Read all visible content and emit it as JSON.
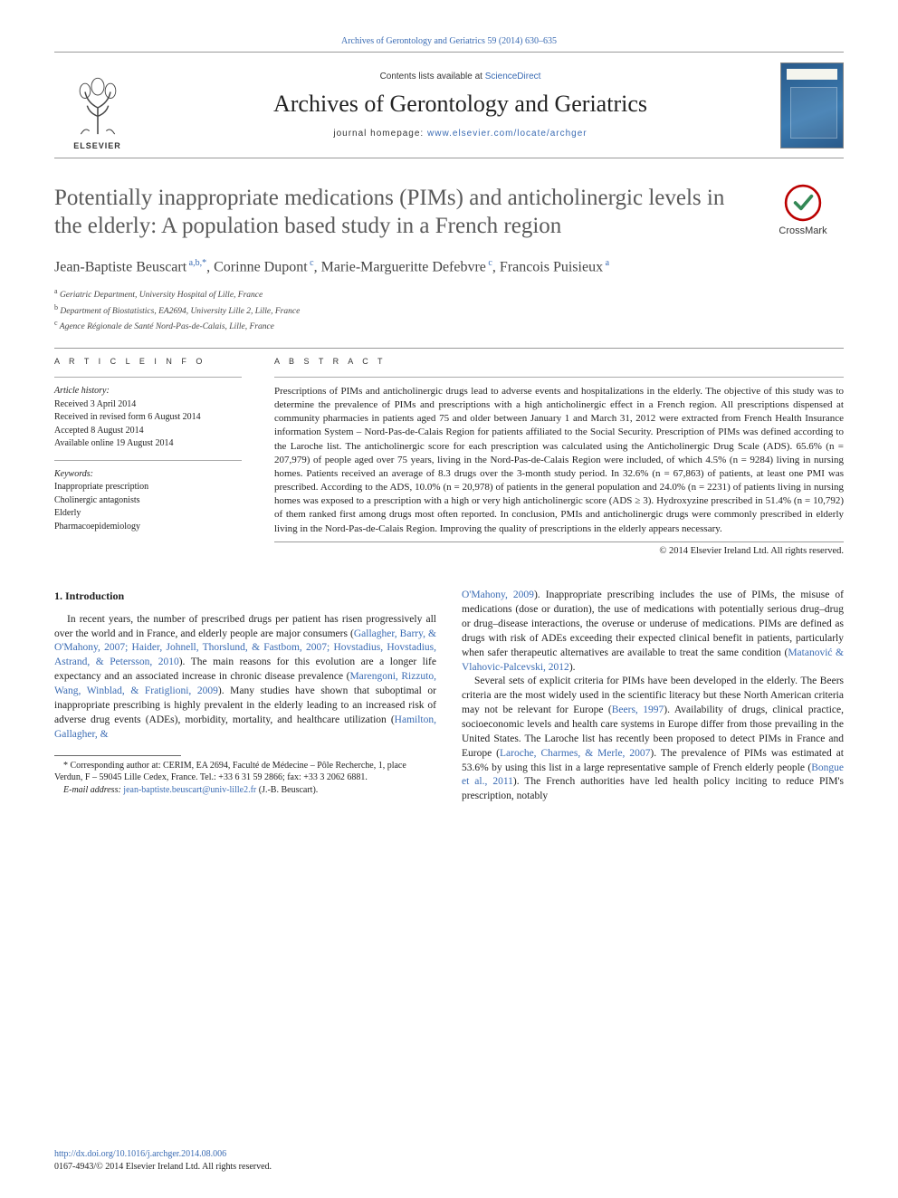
{
  "top_citation": "Archives of Gerontology and Geriatrics 59 (2014) 630–635",
  "header": {
    "publisher_name": "ELSEVIER",
    "contents_prefix": "Contents lists available at ",
    "contents_link": "ScienceDirect",
    "journal_name": "Archives of Gerontology and Geriatrics",
    "homepage_prefix": "journal homepage: ",
    "homepage_url": "www.elsevier.com/locate/archger"
  },
  "crossmark_label": "CrossMark",
  "article": {
    "title": "Potentially inappropriate medications (PIMs) and anticholinergic levels in the elderly: A population based study in a French region",
    "authors_html": "Jean-Baptiste Beuscart<sup> a,b,*</sup>, Corinne Dupont<sup> c</sup>, Marie-Margueritte Defebvre<sup> c</sup>, Francois Puisieux<sup> a</sup>",
    "affiliations": [
      "a Geriatric Department, University Hospital of Lille, France",
      "b Department of Biostatistics, EA2694, University Lille 2, Lille, France",
      "c Agence Régionale de Santé Nord-Pas-de-Calais, Lille, France"
    ]
  },
  "info": {
    "heading": "A R T I C L E   I N F O",
    "history_label": "Article history:",
    "history": [
      "Received 3 April 2014",
      "Received in revised form 6 August 2014",
      "Accepted 8 August 2014",
      "Available online 19 August 2014"
    ],
    "keywords_label": "Keywords:",
    "keywords": [
      "Inappropriate prescription",
      "Cholinergic antagonists",
      "Elderly",
      "Pharmacoepidemiology"
    ]
  },
  "abstract": {
    "heading": "A B S T R A C T",
    "text": "Prescriptions of PIMs and anticholinergic drugs lead to adverse events and hospitalizations in the elderly. The objective of this study was to determine the prevalence of PIMs and prescriptions with a high anticholinergic effect in a French region. All prescriptions dispensed at community pharmacies in patients aged 75 and older between January 1 and March 31, 2012 were extracted from French Health Insurance information System – Nord-Pas-de-Calais Region for patients affiliated to the Social Security. Prescription of PIMs was defined according to the Laroche list. The anticholinergic score for each prescription was calculated using the Anticholinergic Drug Scale (ADS). 65.6% (n = 207,979) of people aged over 75 years, living in the Nord-Pas-de-Calais Region were included, of which 4.5% (n = 9284) living in nursing homes. Patients received an average of 8.3 drugs over the 3-month study period. In 32.6% (n = 67,863) of patients, at least one PMI was prescribed. According to the ADS, 10.0% (n = 20,978) of patients in the general population and 24.0% (n = 2231) of patients living in nursing homes was exposed to a prescription with a high or very high anticholinergic score (ADS ≥ 3). Hydroxyzine prescribed in 51.4% (n = 10,792) of them ranked first among drugs most often reported. In conclusion, PMIs and anticholinergic drugs were commonly prescribed in elderly living in the Nord-Pas-de-Calais Region. Improving the quality of prescriptions in the elderly appears necessary.",
    "copyright": "© 2014 Elsevier Ireland Ltd. All rights reserved."
  },
  "body": {
    "section_heading": "1. Introduction",
    "col1_para1_pre": "In recent years, the number of prescribed drugs per patient has risen progressively all over the world and in France, and elderly people are major consumers (",
    "ref1": "Gallagher, Barry, & O'Mahony, 2007; Haider, Johnell, Thorslund, & Fastbom, 2007; Hovstadius, Hovstadius, Astrand, & Petersson, 2010",
    "col1_para1_mid1": "). The main reasons for this evolution are a longer life expectancy and an associated increase in chronic disease prevalence (",
    "ref2": "Marengoni, Rizzuto, Wang, Winblad, & Fratiglioni, 2009",
    "col1_para1_mid2": "). Many studies have shown that suboptimal or inappropriate prescribing is highly prevalent in the elderly leading to an increased risk of adverse drug events (ADEs), morbidity, mortality, and healthcare utilization (",
    "ref3": "Hamilton, Gallagher, &",
    "col2_ref3_cont": "O'Mahony, 2009",
    "col2_para1": "). Inappropriate prescribing includes the use of PIMs, the misuse of medications (dose or duration), the use of medications with potentially serious drug–drug or drug–disease interactions, the overuse or underuse of medications. PIMs are defined as drugs with risk of ADEs exceeding their expected clinical benefit in patients, particularly when safer therapeutic alternatives are available to treat the same condition (",
    "ref4": "Matanović & Vlahovic-Palcevski, 2012",
    "col2_para1_end": ").",
    "col2_para2_pre": "Several sets of explicit criteria for PIMs have been developed in the elderly. The Beers criteria are the most widely used in the scientific literacy but these North American criteria may not be relevant for Europe (",
    "ref5": "Beers, 1997",
    "col2_para2_mid1": "). Availability of drugs, clinical practice, socioeconomic levels and health care systems in Europe differ from those prevailing in the United States. The Laroche list has recently been proposed to detect PIMs in France and Europe (",
    "ref6": "Laroche, Charmes, & Merle, 2007",
    "col2_para2_mid2": "). The prevalence of PIMs was estimated at 53.6% by using this list in a large representative sample of French elderly people (",
    "ref7": "Bongue et al., 2011",
    "col2_para2_end": "). The French authorities have led health policy inciting to reduce PIM's prescription, notably"
  },
  "footnotes": {
    "corresponding": "* Corresponding author at: CERIM, EA 2694, Faculté de Médecine – Pôle Recherche, 1, place Verdun, F – 59045 Lille Cedex, France. Tel.: +33 6 31 59 2866; fax: +33 3 2062 6881.",
    "email_label": "E-mail address: ",
    "email": "jean-baptiste.beuscart@univ-lille2.fr",
    "email_suffix": " (J.-B. Beuscart)."
  },
  "doi": {
    "url": "http://dx.doi.org/10.1016/j.archger.2014.08.006",
    "issn_line": "0167-4943/© 2014 Elsevier Ireland Ltd. All rights reserved."
  },
  "colors": {
    "link": "#3a6bb3",
    "title_gray": "#5a5a5a",
    "rule": "#999999",
    "text": "#222222"
  }
}
